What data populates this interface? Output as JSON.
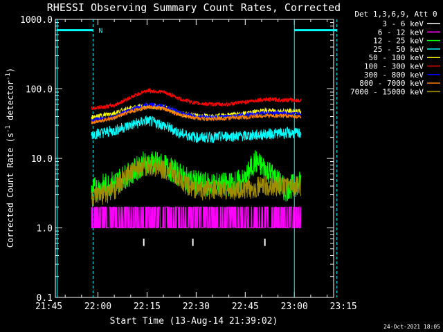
{
  "chart_data": {
    "type": "line",
    "title": "RHESSI Observing Summary Count Rates, Corrected",
    "xlabel": "Start Time (13-Aug-14 21:39:02)",
    "ylabel": "Corrected Count Rate (s⁻¹ detector⁻¹)",
    "ylabel_parts": [
      "Corrected Count Rate (s",
      "-1",
      " detector",
      "-1",
      ")"
    ],
    "yscale": "log",
    "ylim": [
      0.1,
      1000
    ],
    "xlim_minutes": [
      -13,
      72
    ],
    "x_tick_labels": [
      "21:45",
      "22:00",
      "22:15",
      "22:30",
      "22:45",
      "23:00",
      "23:15"
    ],
    "x_tick_minutes": [
      -15,
      0,
      15,
      30,
      45,
      60,
      75
    ],
    "y_tick_labels": [
      "0.1",
      "1.0",
      "10.0",
      "100.0",
      "1000.0"
    ],
    "y_tick_values": [
      0.1,
      1,
      10,
      100,
      1000
    ],
    "legend_title": "Det 1,3,6,9, Att 0",
    "legend_position": "right",
    "annotation": "N",
    "footer": "24-Oct-2021 18:05",
    "colors": {
      "background": "#000000",
      "axes": "#ffffff",
      "marker_line": "#00ffff",
      "event_tick": "#ffffff"
    },
    "event_ticks_minutes": [
      14,
      29,
      51
    ],
    "marker_lines": [
      {
        "x_minutes": -12.5,
        "style": "solid"
      },
      {
        "x_minutes": -1.5,
        "style": "dashed"
      },
      {
        "x_minutes": 60,
        "style": "solid"
      },
      {
        "x_minutes": 73,
        "style": "dashed"
      }
    ],
    "horizontal_bars": [
      {
        "from_minutes": -12.5,
        "to_minutes": -1.5,
        "y": 700
      },
      {
        "from_minutes": 60,
        "to_minutes": 73,
        "y": 700
      }
    ],
    "series": [
      {
        "name": "3 - 6 keV",
        "color": "#ffffff",
        "points": [
          [
            0,
            0
          ],
          [
            0,
            0
          ]
        ]
      },
      {
        "name": "6 - 12 keV",
        "color": "#ff00ff",
        "points": [
          [
            -2,
            1
          ],
          [
            5,
            1.3
          ],
          [
            10,
            1.5
          ],
          [
            15,
            1.4
          ],
          [
            20,
            1.6
          ],
          [
            25,
            1.4
          ],
          [
            30,
            1.7
          ],
          [
            35,
            1.5
          ],
          [
            40,
            1.6
          ],
          [
            45,
            1.5
          ],
          [
            50,
            1.7
          ],
          [
            55,
            1.4
          ],
          [
            62,
            1.5
          ]
        ]
      },
      {
        "name": "12 - 25 keV",
        "color": "#00ff00",
        "points": [
          [
            -2,
            3.5
          ],
          [
            5,
            4.5
          ],
          [
            10,
            6
          ],
          [
            14,
            8.5
          ],
          [
            18,
            8.5
          ],
          [
            22,
            7
          ],
          [
            27,
            5
          ],
          [
            32,
            4.2
          ],
          [
            40,
            4.2
          ],
          [
            45,
            4.8
          ],
          [
            48,
            9
          ],
          [
            52,
            6.5
          ],
          [
            57,
            3.5
          ],
          [
            62,
            4.5
          ]
        ]
      },
      {
        "name": "25 - 50 keV",
        "color": "#00ffff",
        "points": [
          [
            -2,
            22
          ],
          [
            5,
            25
          ],
          [
            10,
            30
          ],
          [
            15,
            35
          ],
          [
            20,
            30
          ],
          [
            25,
            23
          ],
          [
            30,
            20
          ],
          [
            35,
            20
          ],
          [
            40,
            21
          ],
          [
            45,
            21
          ],
          [
            50,
            22
          ],
          [
            55,
            23
          ],
          [
            62,
            23
          ]
        ]
      },
      {
        "name": "50 - 100 keV",
        "color": "#ffff00",
        "points": [
          [
            -2,
            38
          ],
          [
            5,
            45
          ],
          [
            10,
            52
          ],
          [
            15,
            57
          ],
          [
            20,
            54
          ],
          [
            25,
            44
          ],
          [
            30,
            41
          ],
          [
            35,
            40
          ],
          [
            40,
            42
          ],
          [
            45,
            44
          ],
          [
            50,
            48
          ],
          [
            55,
            48
          ],
          [
            62,
            47
          ]
        ]
      },
      {
        "name": "100 - 300 keV",
        "color": "#ff0000",
        "points": [
          [
            -2,
            52
          ],
          [
            5,
            58
          ],
          [
            10,
            75
          ],
          [
            15,
            95
          ],
          [
            20,
            90
          ],
          [
            25,
            72
          ],
          [
            30,
            62
          ],
          [
            35,
            60
          ],
          [
            40,
            60
          ],
          [
            45,
            65
          ],
          [
            50,
            70
          ],
          [
            55,
            70
          ],
          [
            62,
            68
          ]
        ]
      },
      {
        "name": "300 - 800 keV",
        "color": "#0000ff",
        "points": [
          [
            -2,
            35
          ],
          [
            5,
            40
          ],
          [
            10,
            50
          ],
          [
            15,
            60
          ],
          [
            20,
            57
          ],
          [
            25,
            46
          ],
          [
            30,
            40
          ],
          [
            35,
            39
          ],
          [
            40,
            40
          ],
          [
            45,
            42
          ],
          [
            50,
            45
          ],
          [
            55,
            45
          ],
          [
            62,
            43
          ]
        ]
      },
      {
        "name": "800 - 7000 keV",
        "color": "#ff8000",
        "points": [
          [
            -2,
            33
          ],
          [
            5,
            38
          ],
          [
            10,
            47
          ],
          [
            15,
            55
          ],
          [
            20,
            52
          ],
          [
            25,
            42
          ],
          [
            30,
            38
          ],
          [
            35,
            37
          ],
          [
            40,
            38
          ],
          [
            45,
            39
          ],
          [
            50,
            41
          ],
          [
            55,
            41
          ],
          [
            62,
            40
          ]
        ]
      },
      {
        "name": "7000 - 15000 keV",
        "color": "#a08c00",
        "points": [
          [
            -2,
            2.5
          ],
          [
            5,
            3.5
          ],
          [
            10,
            6
          ],
          [
            14,
            8
          ],
          [
            18,
            7.5
          ],
          [
            22,
            6.5
          ],
          [
            27,
            4
          ],
          [
            32,
            3.5
          ],
          [
            40,
            3.5
          ],
          [
            45,
            3.5
          ],
          [
            50,
            4
          ],
          [
            55,
            4
          ],
          [
            62,
            4
          ]
        ]
      }
    ]
  }
}
